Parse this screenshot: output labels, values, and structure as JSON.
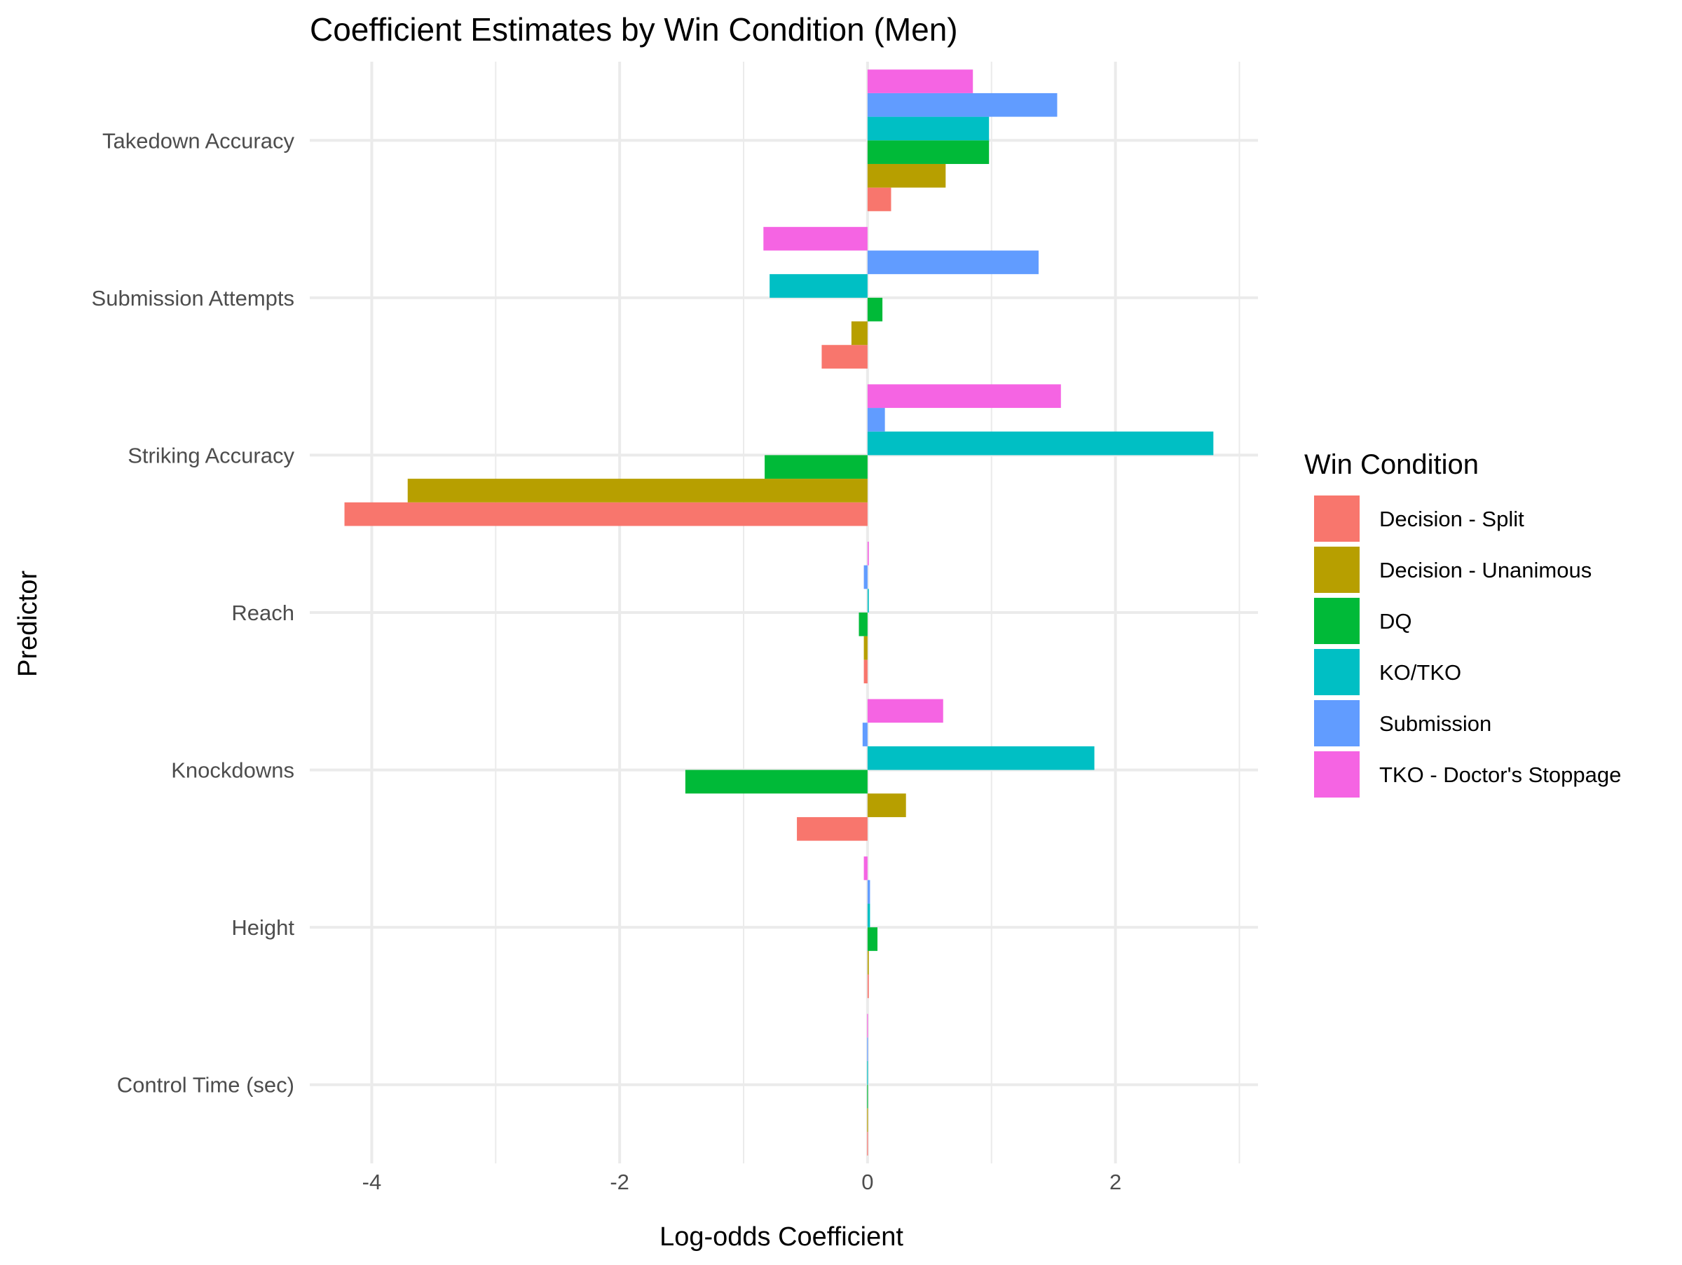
{
  "chart_data": {
    "type": "bar",
    "orientation": "horizontal",
    "title": "Coefficient Estimates by Win Condition (Men)",
    "xlabel": "Log-odds Coefficient",
    "ylabel": "Predictor",
    "xlim": [
      -4.5,
      3.15
    ],
    "x_ticks": [
      -4,
      -2,
      0,
      2
    ],
    "x_tick_labels": [
      "-4",
      "-2",
      "0",
      "2"
    ],
    "grid": true,
    "categories": [
      "Control Time (sec)",
      "Height",
      "Knockdowns",
      "Reach",
      "Striking Accuracy",
      "Submission Attempts",
      "Takedown Accuracy"
    ],
    "legend": {
      "title": "Win Condition",
      "position": "right"
    },
    "series": [
      {
        "name": "Decision - Split",
        "color": "#F8766D",
        "values": [
          0.0,
          0.01,
          -0.57,
          -0.03,
          -4.22,
          -0.37,
          0.19
        ]
      },
      {
        "name": "Decision - Unanimous",
        "color": "#B79F00",
        "values": [
          0.0,
          0.01,
          0.31,
          -0.03,
          -3.71,
          -0.13,
          0.63
        ]
      },
      {
        "name": "DQ",
        "color": "#00BA38",
        "values": [
          0.0,
          0.08,
          -1.47,
          -0.07,
          -0.83,
          0.12,
          0.98
        ]
      },
      {
        "name": "KO/TKO",
        "color": "#00BFC4",
        "values": [
          0.0,
          0.02,
          1.83,
          0.01,
          2.79,
          -0.79,
          0.98
        ]
      },
      {
        "name": "Submission",
        "color": "#619CFF",
        "values": [
          0.0,
          0.02,
          -0.04,
          -0.03,
          0.14,
          1.38,
          1.53
        ]
      },
      {
        "name": "TKO - Doctor's Stoppage",
        "color": "#F564E3",
        "values": [
          0.0,
          -0.03,
          0.61,
          0.01,
          1.56,
          -0.84,
          0.85
        ]
      }
    ]
  }
}
